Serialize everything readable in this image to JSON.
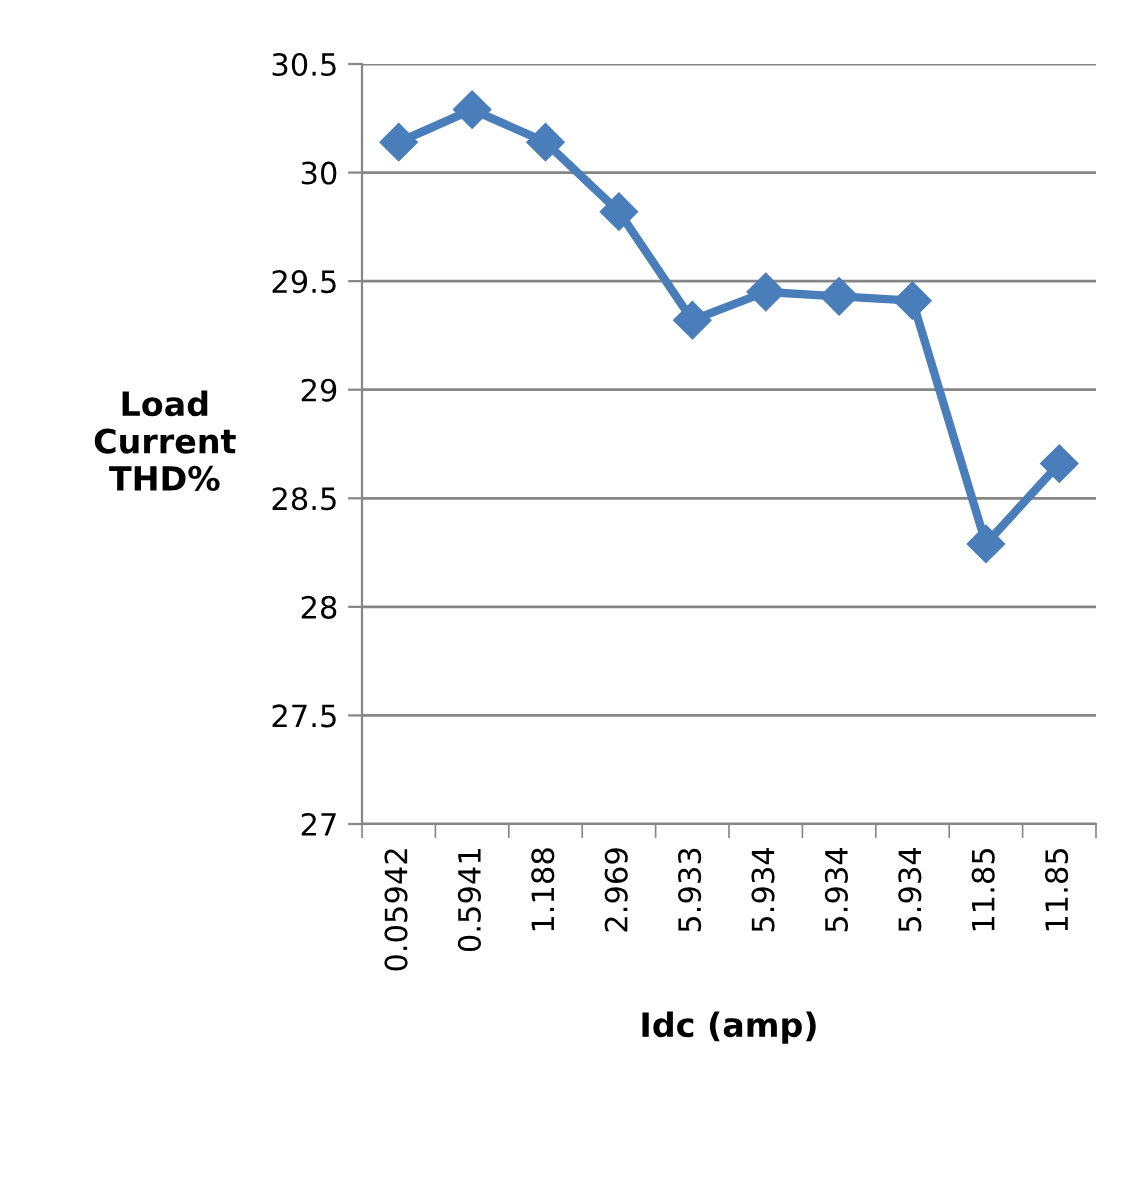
{
  "chart_data": {
    "type": "line",
    "xlabel": "Idc (amp)",
    "ylabel": "Load\nCurrent\nTHD%",
    "categories": [
      "0.05942",
      "0.5941",
      "1.188",
      "2.969",
      "5.933",
      "5.934",
      "5.934",
      "5.934",
      "11.85",
      "11.85"
    ],
    "series": [
      {
        "color": "#4a7ebb",
        "values": [
          30.14,
          30.29,
          30.14,
          29.82,
          29.32,
          29.45,
          29.43,
          29.41,
          28.29,
          28.66
        ]
      }
    ],
    "ylim": [
      27,
      30.5
    ],
    "yticks": [
      27,
      27.5,
      28,
      28.5,
      29,
      29.5,
      30,
      30.5
    ],
    "grid": "y",
    "marker": "diamond",
    "line_style": "solid",
    "legend": false
  }
}
